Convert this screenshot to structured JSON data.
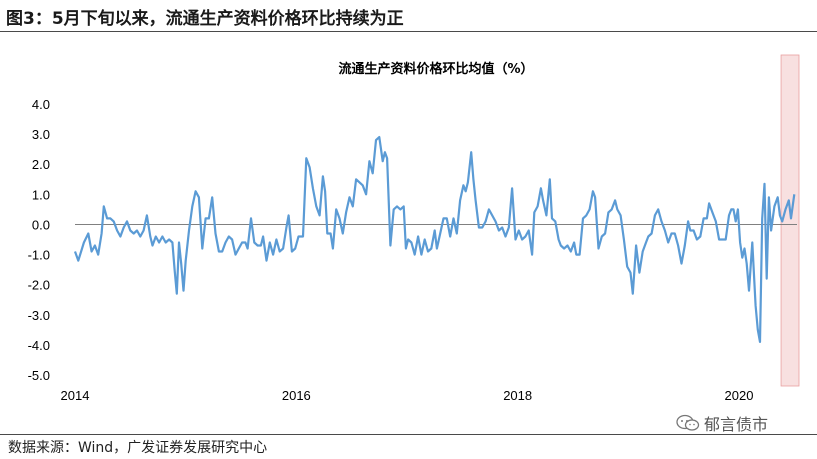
{
  "figure_title": "图3：5月下旬以来，流通生产资料价格环比持续为正",
  "source_text": "数据来源：Wind，广发证券发展研究中心",
  "watermark_text": "郁言债市",
  "colors": {
    "line": "#5B9BD5",
    "highlight": "#F8E0E0",
    "highlight_border": "#E8A0A0",
    "zero_line": "#808080"
  },
  "chart_data": {
    "type": "line",
    "title": "流通生产资料价格环比均值（%）",
    "xlabel": "",
    "ylabel": "",
    "ylim": [
      -5.0,
      4.0
    ],
    "yticks": [
      "4.0",
      "3.0",
      "2.0",
      "1.0",
      "0.0",
      "-1.0",
      "-2.0",
      "-3.0",
      "-4.0",
      "-5.0"
    ],
    "xticks": [
      {
        "label": "2014",
        "x": 2014.0
      },
      {
        "label": "2016",
        "x": 2016.0
      },
      {
        "label": "2018",
        "x": 2018.0
      },
      {
        "label": "2020",
        "x": 2020.0
      }
    ],
    "xlim": [
      2014.0,
      2020.65
    ],
    "highlight_range": [
      2020.38,
      2020.65
    ],
    "grid": false,
    "legend": "none",
    "series": [
      {
        "name": "",
        "points": [
          [
            2014.0,
            -0.9
          ],
          [
            2014.03,
            -1.2
          ],
          [
            2014.08,
            -0.6
          ],
          [
            2014.12,
            -0.3
          ],
          [
            2014.15,
            -0.9
          ],
          [
            2014.18,
            -0.7
          ],
          [
            2014.21,
            -1.0
          ],
          [
            2014.24,
            -0.3
          ],
          [
            2014.26,
            0.6
          ],
          [
            2014.29,
            0.2
          ],
          [
            2014.32,
            0.2
          ],
          [
            2014.35,
            0.1
          ],
          [
            2014.38,
            -0.2
          ],
          [
            2014.41,
            -0.4
          ],
          [
            2014.44,
            -0.1
          ],
          [
            2014.47,
            0.1
          ],
          [
            2014.5,
            -0.2
          ],
          [
            2014.53,
            -0.3
          ],
          [
            2014.56,
            -0.2
          ],
          [
            2014.59,
            -0.4
          ],
          [
            2014.62,
            -0.2
          ],
          [
            2014.65,
            0.3
          ],
          [
            2014.68,
            -0.4
          ],
          [
            2014.7,
            -0.7
          ],
          [
            2014.73,
            -0.4
          ],
          [
            2014.76,
            -0.6
          ],
          [
            2014.79,
            -0.4
          ],
          [
            2014.82,
            -0.6
          ],
          [
            2014.85,
            -0.5
          ],
          [
            2014.88,
            -0.6
          ],
          [
            2014.9,
            -1.5
          ],
          [
            2014.92,
            -2.3
          ],
          [
            2014.94,
            -0.6
          ],
          [
            2014.96,
            -1.3
          ],
          [
            2014.98,
            -2.2
          ],
          [
            2015.0,
            -1.2
          ],
          [
            2015.03,
            -0.2
          ],
          [
            2015.06,
            0.6
          ],
          [
            2015.09,
            1.1
          ],
          [
            2015.12,
            0.9
          ],
          [
            2015.15,
            -0.8
          ],
          [
            2015.18,
            0.2
          ],
          [
            2015.21,
            0.2
          ],
          [
            2015.24,
            0.9
          ],
          [
            2015.27,
            -0.3
          ],
          [
            2015.3,
            -0.9
          ],
          [
            2015.33,
            -0.9
          ],
          [
            2015.36,
            -0.6
          ],
          [
            2015.39,
            -0.4
          ],
          [
            2015.42,
            -0.5
          ],
          [
            2015.45,
            -1.0
          ],
          [
            2015.48,
            -0.8
          ],
          [
            2015.51,
            -0.6
          ],
          [
            2015.54,
            -0.6
          ],
          [
            2015.56,
            -0.8
          ],
          [
            2015.59,
            0.2
          ],
          [
            2015.62,
            -0.6
          ],
          [
            2015.65,
            -0.7
          ],
          [
            2015.68,
            -0.7
          ],
          [
            2015.7,
            -0.4
          ],
          [
            2015.73,
            -1.2
          ],
          [
            2015.76,
            -0.6
          ],
          [
            2015.79,
            -1.0
          ],
          [
            2015.82,
            -0.5
          ],
          [
            2015.85,
            -0.9
          ],
          [
            2015.88,
            -0.8
          ],
          [
            2015.91,
            -0.1
          ],
          [
            2015.93,
            0.3
          ],
          [
            2015.96,
            -0.9
          ],
          [
            2015.99,
            -0.8
          ],
          [
            2016.02,
            -0.4
          ],
          [
            2016.04,
            -0.4
          ],
          [
            2016.06,
            -0.4
          ],
          [
            2016.09,
            2.2
          ],
          [
            2016.12,
            1.9
          ],
          [
            2016.15,
            1.2
          ],
          [
            2016.18,
            0.6
          ],
          [
            2016.21,
            0.3
          ],
          [
            2016.24,
            1.6
          ],
          [
            2016.26,
            1.1
          ],
          [
            2016.28,
            -0.3
          ],
          [
            2016.31,
            -0.3
          ],
          [
            2016.33,
            -0.8
          ],
          [
            2016.36,
            0.5
          ],
          [
            2016.39,
            0.2
          ],
          [
            2016.42,
            -0.3
          ],
          [
            2016.45,
            0.4
          ],
          [
            2016.48,
            0.9
          ],
          [
            2016.51,
            0.6
          ],
          [
            2016.54,
            1.5
          ],
          [
            2016.57,
            1.4
          ],
          [
            2016.6,
            1.3
          ],
          [
            2016.63,
            1.0
          ],
          [
            2016.66,
            2.1
          ],
          [
            2016.69,
            1.7
          ],
          [
            2016.72,
            2.8
          ],
          [
            2016.75,
            2.9
          ],
          [
            2016.78,
            2.1
          ],
          [
            2016.8,
            2.4
          ],
          [
            2016.82,
            2.2
          ],
          [
            2016.85,
            -0.7
          ],
          [
            2016.88,
            0.5
          ],
          [
            2016.91,
            0.6
          ],
          [
            2016.94,
            0.5
          ],
          [
            2016.97,
            0.6
          ],
          [
            2016.99,
            -0.8
          ],
          [
            2017.01,
            -0.5
          ],
          [
            2017.04,
            -0.6
          ],
          [
            2017.07,
            -1.0
          ],
          [
            2017.1,
            -0.4
          ],
          [
            2017.13,
            -1.0
          ],
          [
            2017.16,
            -0.5
          ],
          [
            2017.19,
            -0.9
          ],
          [
            2017.22,
            -0.8
          ],
          [
            2017.25,
            -0.2
          ],
          [
            2017.27,
            -0.8
          ],
          [
            2017.3,
            -0.3
          ],
          [
            2017.33,
            0.2
          ],
          [
            2017.36,
            0.2
          ],
          [
            2017.39,
            -0.4
          ],
          [
            2017.42,
            0.2
          ],
          [
            2017.45,
            -0.3
          ],
          [
            2017.48,
            0.8
          ],
          [
            2017.51,
            1.3
          ],
          [
            2017.53,
            1.1
          ],
          [
            2017.55,
            1.4
          ],
          [
            2017.58,
            2.4
          ],
          [
            2017.6,
            1.5
          ],
          [
            2017.62,
            0.8
          ],
          [
            2017.65,
            -0.1
          ],
          [
            2017.68,
            -0.1
          ],
          [
            2017.71,
            0.1
          ],
          [
            2017.74,
            0.5
          ],
          [
            2017.77,
            0.3
          ],
          [
            2017.8,
            0.1
          ],
          [
            2017.83,
            -0.2
          ],
          [
            2017.86,
            -0.1
          ],
          [
            2017.89,
            -0.4
          ],
          [
            2017.92,
            -0.1
          ],
          [
            2017.95,
            1.2
          ],
          [
            2017.98,
            -0.5
          ],
          [
            2018.01,
            -0.2
          ],
          [
            2018.04,
            -0.5
          ],
          [
            2018.07,
            -0.4
          ],
          [
            2018.1,
            -0.2
          ],
          [
            2018.13,
            -1.0
          ],
          [
            2018.15,
            0.4
          ],
          [
            2018.18,
            0.6
          ],
          [
            2018.21,
            1.2
          ],
          [
            2018.23,
            0.8
          ],
          [
            2018.26,
            0.3
          ],
          [
            2018.29,
            1.5
          ],
          [
            2018.31,
            0.2
          ],
          [
            2018.34,
            0.1
          ],
          [
            2018.37,
            -0.5
          ],
          [
            2018.39,
            -0.7
          ],
          [
            2018.42,
            -0.8
          ],
          [
            2018.45,
            -0.7
          ],
          [
            2018.48,
            -0.9
          ],
          [
            2018.51,
            -0.6
          ],
          [
            2018.53,
            -1.0
          ],
          [
            2018.56,
            -1.0
          ],
          [
            2018.59,
            0.2
          ],
          [
            2018.62,
            0.3
          ],
          [
            2018.65,
            0.5
          ],
          [
            2018.68,
            1.1
          ],
          [
            2018.7,
            0.9
          ],
          [
            2018.73,
            -0.8
          ],
          [
            2018.76,
            -0.4
          ],
          [
            2018.79,
            -0.3
          ],
          [
            2018.82,
            0.4
          ],
          [
            2018.85,
            0.5
          ],
          [
            2018.88,
            0.8
          ],
          [
            2018.9,
            0.5
          ],
          [
            2018.93,
            0.3
          ],
          [
            2018.96,
            -0.5
          ],
          [
            2018.99,
            -1.4
          ],
          [
            2019.02,
            -1.6
          ],
          [
            2019.04,
            -2.3
          ],
          [
            2019.07,
            -0.7
          ],
          [
            2019.1,
            -1.6
          ],
          [
            2019.13,
            -0.9
          ],
          [
            2019.16,
            -0.6
          ],
          [
            2019.18,
            -0.4
          ],
          [
            2019.21,
            -0.3
          ],
          [
            2019.24,
            0.3
          ],
          [
            2019.27,
            0.5
          ],
          [
            2019.3,
            0.1
          ],
          [
            2019.33,
            -0.2
          ],
          [
            2019.36,
            -0.6
          ],
          [
            2019.39,
            -0.3
          ],
          [
            2019.42,
            -0.3
          ],
          [
            2019.45,
            -0.7
          ],
          [
            2019.48,
            -1.3
          ],
          [
            2019.51,
            -0.7
          ],
          [
            2019.54,
            0.1
          ],
          [
            2019.56,
            -0.2
          ],
          [
            2019.59,
            -0.2
          ],
          [
            2019.62,
            -0.5
          ],
          [
            2019.65,
            -0.4
          ],
          [
            2019.68,
            0.2
          ],
          [
            2019.71,
            0.2
          ],
          [
            2019.73,
            0.7
          ],
          [
            2019.76,
            0.4
          ],
          [
            2019.79,
            0.1
          ],
          [
            2019.82,
            -0.5
          ],
          [
            2019.85,
            -0.5
          ],
          [
            2019.88,
            -0.5
          ],
          [
            2019.91,
            0.3
          ],
          [
            2019.93,
            0.5
          ],
          [
            2019.95,
            0.5
          ],
          [
            2019.97,
            0.1
          ],
          [
            2019.99,
            0.5
          ],
          [
            2020.01,
            -0.6
          ],
          [
            2020.03,
            -1.1
          ],
          [
            2020.05,
            -0.8
          ],
          [
            2020.07,
            -1.3
          ],
          [
            2020.09,
            -2.2
          ],
          [
            2020.12,
            -0.6
          ],
          [
            2020.15,
            -2.7
          ],
          [
            2020.17,
            -3.5
          ],
          [
            2020.19,
            -3.9
          ],
          [
            2020.21,
            0.2
          ],
          [
            2020.23,
            1.35
          ],
          [
            2020.25,
            -1.8
          ],
          [
            2020.27,
            0.9
          ],
          [
            2020.29,
            -0.2
          ],
          [
            2020.32,
            0.6
          ],
          [
            2020.35,
            0.9
          ],
          [
            2020.37,
            0.3
          ],
          [
            2020.39,
            0.1
          ],
          [
            2020.42,
            0.5
          ],
          [
            2020.45,
            0.8
          ],
          [
            2020.47,
            0.2
          ],
          [
            2020.5,
            1.0
          ]
        ]
      }
    ]
  }
}
